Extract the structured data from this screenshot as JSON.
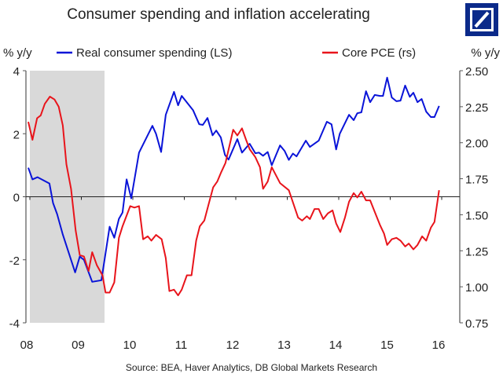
{
  "chart_data": {
    "type": "line",
    "title": "Consumer spending and inflation accelerating",
    "source": "Source: BEA, Haver Analytics, DB Global Markets Research",
    "logo": "Deutsche Bank",
    "left_axis": {
      "label": "% y/y",
      "range": [
        -4,
        4
      ],
      "ticks": [
        "4",
        "2",
        "0",
        "-2",
        "-4"
      ],
      "tick_values": [
        4,
        2,
        0,
        -2,
        -4
      ]
    },
    "right_axis": {
      "label": "% y/y",
      "range": [
        0.75,
        2.5
      ],
      "ticks": [
        "2.50",
        "2.25",
        "2.00",
        "1.75",
        "1.50",
        "1.25",
        "1.00",
        "0.75"
      ],
      "tick_values": [
        2.5,
        2.25,
        2.0,
        1.75,
        1.5,
        1.25,
        1.0,
        0.75
      ]
    },
    "x_axis": {
      "range": [
        8,
        16
      ],
      "ticks": [
        "08",
        "09",
        "10",
        "11",
        "12",
        "13",
        "14",
        "15",
        "16"
      ],
      "tick_values": [
        8,
        9,
        10,
        11,
        12,
        13,
        14,
        15,
        16
      ]
    },
    "shaded_region": {
      "label": "recession",
      "x": [
        8.0,
        9.45
      ]
    },
    "zero_line_left": 0,
    "colors": {
      "blue": "#0a14d8",
      "red": "#e8141b",
      "shade": "#d9d9d9",
      "logo": "#0b2a8a"
    },
    "series": [
      {
        "name": "Real consumer spending (LS)",
        "axis": "left",
        "color": "#0a14d8",
        "x": [
          7.97,
          8.05,
          8.15,
          8.38,
          8.45,
          8.53,
          8.64,
          8.88,
          8.97,
          9.05,
          9.21,
          9.39,
          9.55,
          9.64,
          9.73,
          9.8,
          9.88,
          9.97,
          10.12,
          10.38,
          10.45,
          10.55,
          10.64,
          10.8,
          10.88,
          10.95,
          11.17,
          11.29,
          11.36,
          11.45,
          11.55,
          11.62,
          11.71,
          11.79,
          11.86,
          12.03,
          12.12,
          12.24,
          12.27,
          12.38,
          12.45,
          12.53,
          12.62,
          12.7,
          12.86,
          12.95,
          13.03,
          13.11,
          13.18,
          13.36,
          13.44,
          13.61,
          13.77,
          13.86,
          13.95,
          14.02,
          14.2,
          14.29,
          14.36,
          14.44,
          14.53,
          14.61,
          14.7,
          14.8,
          14.86,
          14.94,
          15.03,
          15.12,
          15.2,
          15.29,
          15.38,
          15.45,
          15.53,
          15.61,
          15.7,
          15.79,
          15.86,
          15.95
        ],
        "values": [
          0.92,
          0.55,
          0.62,
          0.42,
          -0.2,
          -0.55,
          -1.2,
          -2.4,
          -1.9,
          -2.0,
          -2.7,
          -2.65,
          -0.95,
          -1.3,
          -0.7,
          -0.5,
          0.55,
          -0.05,
          1.4,
          2.25,
          2.0,
          1.42,
          2.6,
          3.33,
          2.9,
          3.2,
          2.75,
          2.3,
          2.28,
          2.5,
          1.95,
          2.1,
          1.88,
          1.33,
          1.18,
          1.83,
          1.4,
          1.63,
          1.68,
          1.38,
          1.4,
          1.3,
          1.42,
          1.0,
          1.63,
          1.45,
          1.17,
          1.37,
          1.28,
          1.78,
          1.58,
          1.78,
          2.38,
          2.3,
          1.5,
          2.0,
          2.6,
          2.43,
          2.65,
          2.68,
          3.35,
          3.0,
          3.23,
          3.2,
          3.2,
          3.78,
          3.15,
          3.03,
          3.05,
          3.53,
          3.17,
          3.3,
          3.0,
          3.1,
          2.7,
          2.53,
          2.53,
          2.88
        ]
      },
      {
        "name": "Core PCE (rs)",
        "axis": "right",
        "color": "#e8141b",
        "x": [
          7.97,
          8.05,
          8.14,
          8.21,
          8.29,
          8.39,
          8.48,
          8.56,
          8.64,
          8.71,
          8.8,
          8.89,
          8.97,
          9.05,
          9.14,
          9.21,
          9.3,
          9.41,
          9.47,
          9.55,
          9.64,
          9.73,
          9.8,
          9.95,
          10.03,
          10.12,
          10.2,
          10.29,
          10.36,
          10.45,
          10.56,
          10.64,
          10.71,
          10.8,
          10.88,
          10.95,
          11.05,
          11.14,
          11.23,
          11.3,
          11.39,
          11.47,
          11.56,
          11.64,
          11.71,
          11.8,
          11.95,
          12.03,
          12.12,
          12.2,
          12.27,
          12.38,
          12.47,
          12.53,
          12.62,
          12.7,
          12.86,
          13.03,
          13.21,
          13.29,
          13.38,
          13.44,
          13.53,
          13.61,
          13.7,
          13.79,
          13.88,
          13.95,
          14.03,
          14.12,
          14.2,
          14.29,
          14.36,
          14.44,
          14.53,
          14.61,
          14.7,
          14.8,
          14.88,
          14.94,
          15.03,
          15.12,
          15.2,
          15.29,
          15.36,
          15.45,
          15.53,
          15.62,
          15.7,
          15.79,
          15.86,
          15.95
        ],
        "values": [
          2.145,
          2.02,
          2.17,
          2.19,
          2.27,
          2.32,
          2.3,
          2.25,
          2.12,
          1.85,
          1.68,
          1.39,
          1.22,
          1.21,
          1.11,
          1.24,
          1.15,
          1.08,
          0.96,
          0.96,
          1.03,
          1.34,
          1.42,
          1.56,
          1.55,
          1.56,
          1.33,
          1.35,
          1.32,
          1.36,
          1.33,
          1.2,
          0.97,
          0.98,
          0.94,
          0.98,
          1.08,
          1.08,
          1.32,
          1.42,
          1.46,
          1.57,
          1.69,
          1.73,
          1.79,
          1.86,
          2.09,
          2.05,
          2.1,
          2.02,
          1.955,
          1.9,
          1.83,
          1.68,
          1.73,
          1.83,
          1.72,
          1.67,
          1.48,
          1.46,
          1.49,
          1.47,
          1.54,
          1.54,
          1.47,
          1.51,
          1.53,
          1.44,
          1.38,
          1.48,
          1.59,
          1.65,
          1.62,
          1.66,
          1.6,
          1.6,
          1.52,
          1.43,
          1.37,
          1.29,
          1.33,
          1.34,
          1.32,
          1.28,
          1.3,
          1.26,
          1.29,
          1.35,
          1.32,
          1.41,
          1.45,
          1.67
        ]
      }
    ],
    "legend": "top"
  }
}
